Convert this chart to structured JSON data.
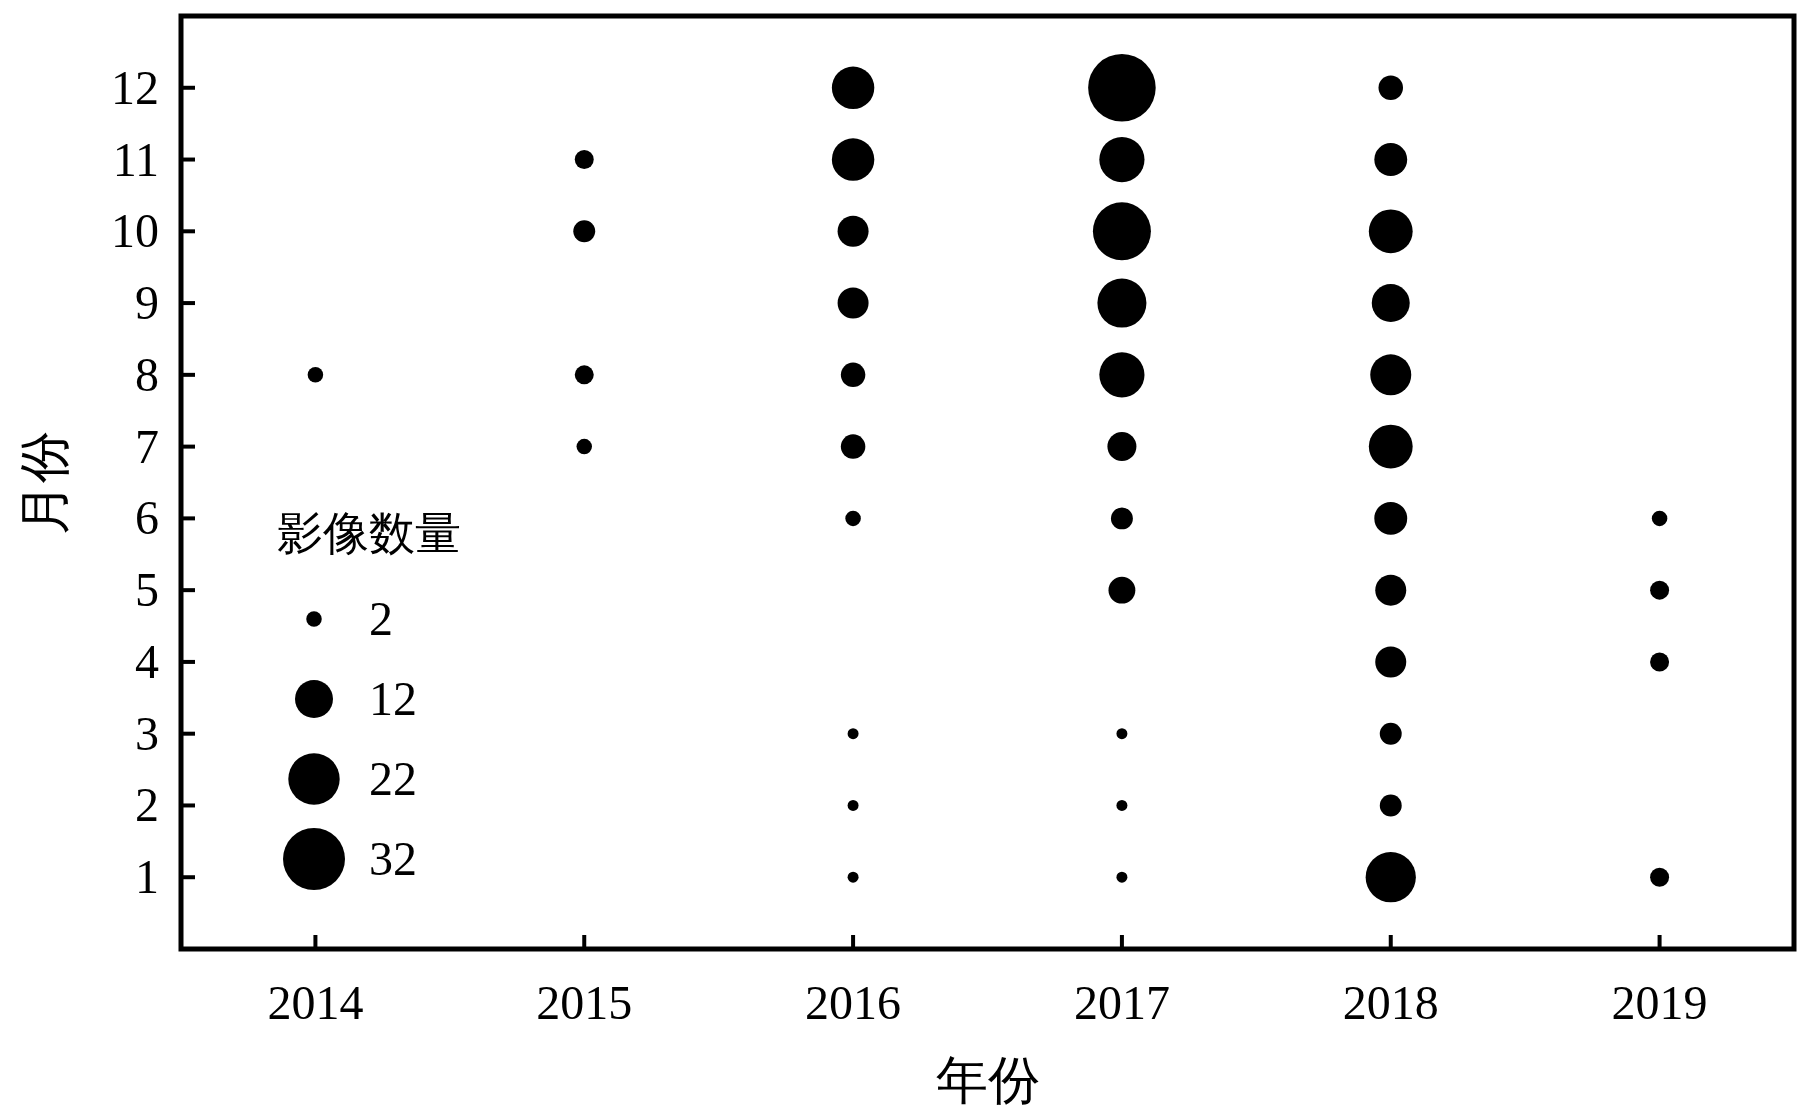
{
  "chart_data": {
    "type": "bubble",
    "xlabel": "年份",
    "ylabel": "月份",
    "legend_title": "影像数量",
    "xlim": [
      2013.5,
      2019.5
    ],
    "ylim": [
      0,
      13
    ],
    "xticks": [
      2014,
      2015,
      2016,
      2017,
      2018,
      2019
    ],
    "yticks": [
      1,
      2,
      3,
      4,
      5,
      6,
      7,
      8,
      9,
      10,
      11,
      12
    ],
    "size_legend": [
      2,
      12,
      22,
      32
    ],
    "series": [
      {
        "color": "#000000",
        "x": [
          2014,
          2015,
          2015,
          2015,
          2015,
          2016,
          2016,
          2016,
          2016,
          2016,
          2016,
          2016,
          2016,
          2016,
          2016,
          2017,
          2017,
          2017,
          2017,
          2017,
          2017,
          2017,
          2017,
          2017,
          2017,
          2017,
          2018,
          2018,
          2018,
          2018,
          2018,
          2018,
          2018,
          2018,
          2018,
          2018,
          2018,
          2018,
          2019,
          2019,
          2019,
          2019
        ],
        "values": [
          8,
          11,
          10,
          8,
          7,
          12,
          11,
          10,
          9,
          8,
          7,
          6,
          3,
          2,
          1,
          12,
          11,
          10,
          9,
          8,
          7,
          6,
          5,
          3,
          2,
          1,
          12,
          11,
          10,
          9,
          8,
          7,
          6,
          5,
          4,
          3,
          2,
          1,
          6,
          5,
          4,
          1
        ],
        "sizes": [
          2,
          3,
          4,
          3,
          2,
          15,
          15,
          8,
          8,
          5,
          5,
          2,
          1,
          1,
          1,
          38,
          17,
          28,
          20,
          17,
          7,
          4,
          6,
          1,
          1,
          1,
          5,
          9,
          16,
          12,
          14,
          16,
          9,
          8,
          8,
          4,
          4,
          21,
          2,
          3,
          3,
          3
        ]
      }
    ]
  }
}
